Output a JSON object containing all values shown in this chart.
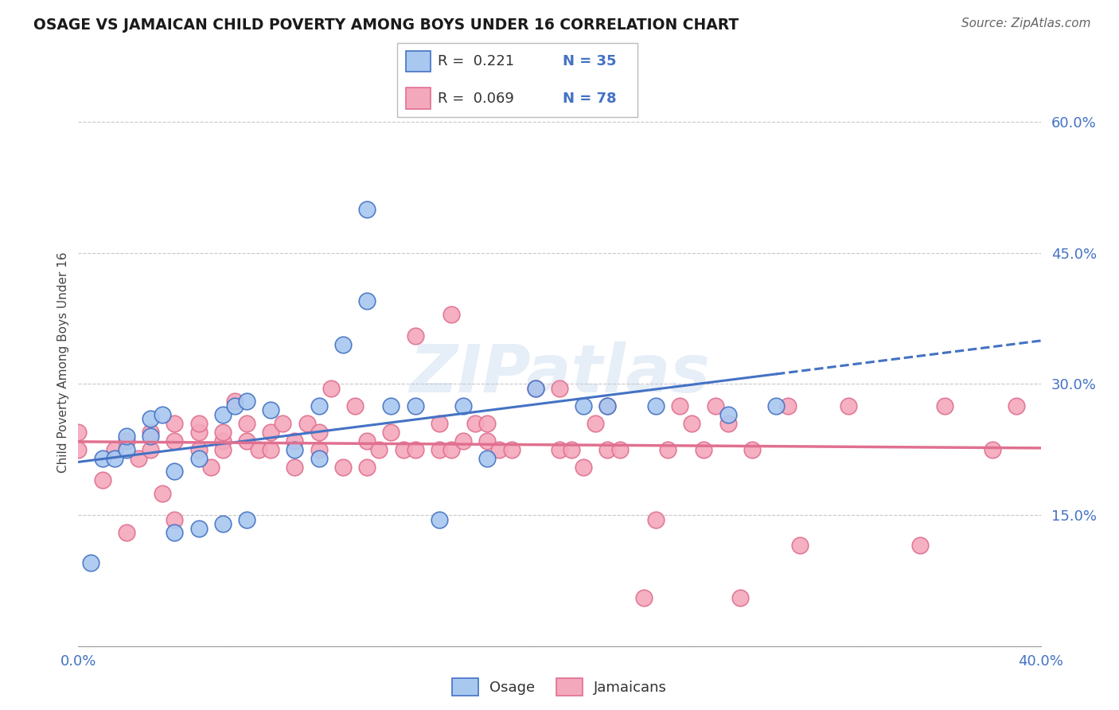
{
  "title": "OSAGE VS JAMAICAN CHILD POVERTY AMONG BOYS UNDER 16 CORRELATION CHART",
  "source": "Source: ZipAtlas.com",
  "ylabel": "Child Poverty Among Boys Under 16",
  "xlim": [
    0.0,
    0.4
  ],
  "ylim": [
    0.0,
    0.65
  ],
  "yticks": [
    0.0,
    0.15,
    0.3,
    0.45,
    0.6
  ],
  "xticks": [
    0.0,
    0.4
  ],
  "ytick_labels": [
    "",
    "15.0%",
    "30.0%",
    "45.0%",
    "60.0%"
  ],
  "xtick_labels": [
    "0.0%",
    "40.0%"
  ],
  "legend_r1": "R =  0.221",
  "legend_n1": "N = 35",
  "legend_r2": "R =  0.069",
  "legend_n2": "N = 78",
  "osage_color": "#a8c8f0",
  "jamaican_color": "#f4a8bc",
  "osage_line_color": "#4472c4",
  "jamaican_line_color": "#e07090",
  "background_color": "#ffffff",
  "watermark": "ZIPatlas",
  "osage_x": [
    0.005,
    0.01,
    0.015,
    0.02,
    0.02,
    0.03,
    0.03,
    0.035,
    0.04,
    0.04,
    0.05,
    0.05,
    0.06,
    0.06,
    0.065,
    0.07,
    0.07,
    0.08,
    0.09,
    0.1,
    0.1,
    0.11,
    0.12,
    0.12,
    0.13,
    0.14,
    0.15,
    0.16,
    0.17,
    0.19,
    0.21,
    0.22,
    0.24,
    0.27,
    0.29
  ],
  "osage_y": [
    0.095,
    0.215,
    0.215,
    0.225,
    0.24,
    0.24,
    0.26,
    0.265,
    0.13,
    0.2,
    0.135,
    0.215,
    0.14,
    0.265,
    0.275,
    0.145,
    0.28,
    0.27,
    0.225,
    0.215,
    0.275,
    0.345,
    0.395,
    0.5,
    0.275,
    0.275,
    0.145,
    0.275,
    0.215,
    0.295,
    0.275,
    0.275,
    0.275,
    0.265,
    0.275
  ],
  "jamaican_x": [
    0.0,
    0.0,
    0.01,
    0.015,
    0.02,
    0.02,
    0.025,
    0.03,
    0.03,
    0.035,
    0.04,
    0.04,
    0.04,
    0.05,
    0.05,
    0.05,
    0.055,
    0.06,
    0.06,
    0.06,
    0.065,
    0.07,
    0.07,
    0.075,
    0.08,
    0.08,
    0.085,
    0.09,
    0.09,
    0.095,
    0.1,
    0.1,
    0.105,
    0.11,
    0.115,
    0.12,
    0.12,
    0.125,
    0.13,
    0.135,
    0.14,
    0.14,
    0.15,
    0.15,
    0.155,
    0.155,
    0.16,
    0.165,
    0.17,
    0.17,
    0.175,
    0.18,
    0.19,
    0.2,
    0.2,
    0.205,
    0.21,
    0.215,
    0.22,
    0.22,
    0.225,
    0.235,
    0.24,
    0.245,
    0.25,
    0.255,
    0.26,
    0.265,
    0.27,
    0.275,
    0.28,
    0.295,
    0.3,
    0.32,
    0.35,
    0.36,
    0.38,
    0.39
  ],
  "jamaican_y": [
    0.225,
    0.245,
    0.19,
    0.225,
    0.235,
    0.13,
    0.215,
    0.225,
    0.245,
    0.175,
    0.145,
    0.235,
    0.255,
    0.225,
    0.245,
    0.255,
    0.205,
    0.235,
    0.245,
    0.225,
    0.28,
    0.235,
    0.255,
    0.225,
    0.225,
    0.245,
    0.255,
    0.205,
    0.235,
    0.255,
    0.225,
    0.245,
    0.295,
    0.205,
    0.275,
    0.205,
    0.235,
    0.225,
    0.245,
    0.225,
    0.225,
    0.355,
    0.225,
    0.255,
    0.225,
    0.38,
    0.235,
    0.255,
    0.235,
    0.255,
    0.225,
    0.225,
    0.295,
    0.225,
    0.295,
    0.225,
    0.205,
    0.255,
    0.275,
    0.225,
    0.225,
    0.055,
    0.145,
    0.225,
    0.275,
    0.255,
    0.225,
    0.275,
    0.255,
    0.055,
    0.225,
    0.275,
    0.115,
    0.275,
    0.115,
    0.275,
    0.225,
    0.275
  ]
}
